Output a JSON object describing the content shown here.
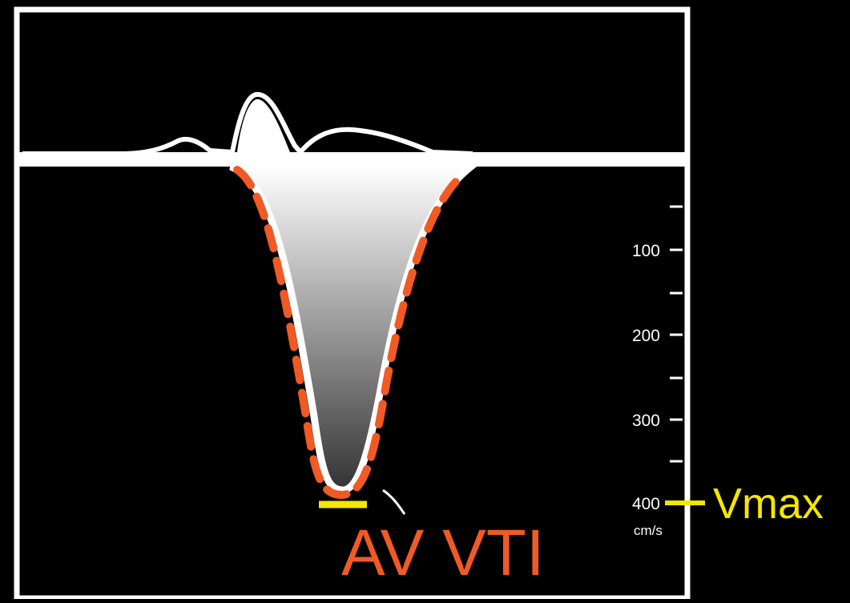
{
  "scale": {
    "tick_labels": [
      "100",
      "200",
      "300",
      "400"
    ],
    "unit": "cm/s"
  },
  "annotations": {
    "vmax_label": "Vmax",
    "vti_label": "AV VTI"
  },
  "measurements": {
    "vmax_velocity": 400
  },
  "colors": {
    "background": "#000000",
    "frame": "#ffffff",
    "envelope_trace": "#ffffff",
    "vti_outline": "#f05a24",
    "vmax_marker": "#f5e600",
    "gradient_top": "#ffffff",
    "gradient_bottom": "#333333"
  }
}
